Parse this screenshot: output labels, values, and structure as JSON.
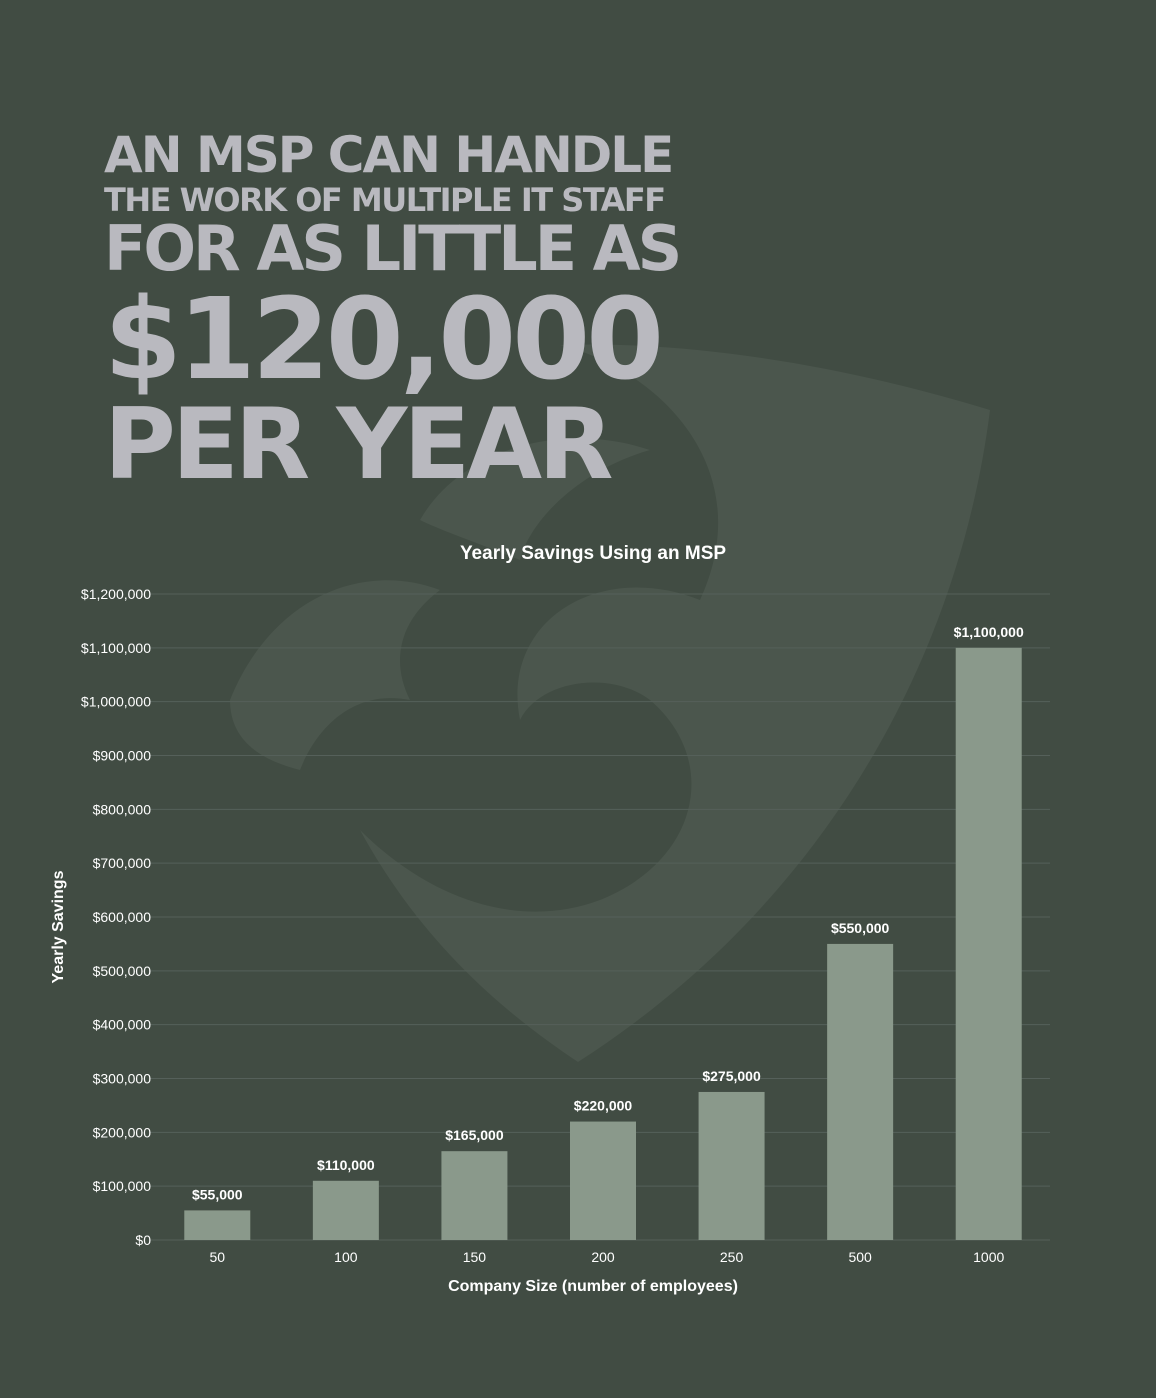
{
  "headline": {
    "line1": "AN MSP CAN HANDLE",
    "line2": "THE WORK OF MULTIPLE IT STAFF",
    "line3": "FOR AS LITTLE AS",
    "line4": "$120,000",
    "line5": "PER YEAR"
  },
  "colors": {
    "background": "#414c43",
    "bar": "#8a998b",
    "headline": "#b9b9bf",
    "grid": "#55605a"
  },
  "chart_data": {
    "type": "bar",
    "title": "Yearly Savings Using an MSP",
    "xlabel": "Company Size (number of employees)",
    "ylabel": "Yearly Savings",
    "categories": [
      "50",
      "100",
      "150",
      "200",
      "250",
      "500",
      "1000"
    ],
    "values": [
      55000,
      110000,
      165000,
      220000,
      275000,
      550000,
      1100000
    ],
    "data_labels": [
      "$55,000",
      "$110,000",
      "$165,000",
      "$220,000",
      "$275,000",
      "$550,000",
      "$1,100,000"
    ],
    "ylim": [
      0,
      1200000
    ],
    "yticks": [
      0,
      100000,
      200000,
      300000,
      400000,
      500000,
      600000,
      700000,
      800000,
      900000,
      1000000,
      1100000,
      1200000
    ],
    "ytick_labels": [
      "$0",
      "$100,000",
      "$200,000",
      "$300,000",
      "$400,000",
      "$500,000",
      "$600,000",
      "$700,000",
      "$800,000",
      "$900,000",
      "$1,000,000",
      "$1,100,000",
      "$1,200,000"
    ],
    "grid": true,
    "legend": "none"
  }
}
